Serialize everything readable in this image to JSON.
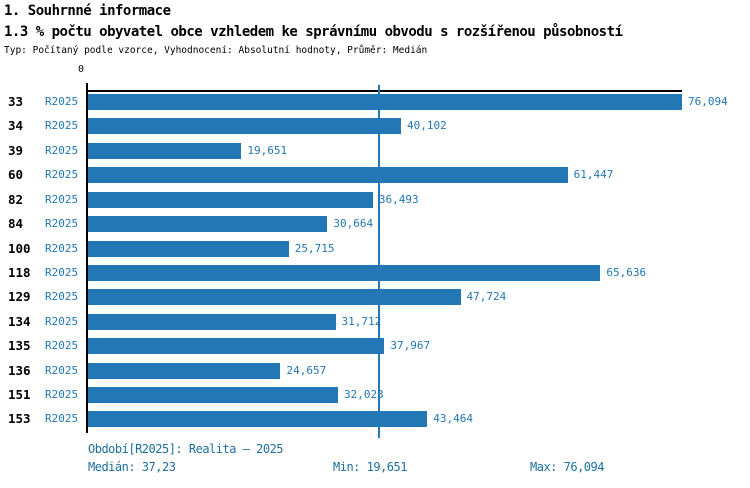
{
  "title": "1. Souhrnné informace",
  "subtitle": "1.3 % počtu obyvatel obce vzhledem ke správnímu obvodu s rozšířenou působností",
  "meta": "Typ: Počítaný podle vzorce, Vyhodnocení: Absolutní hodnoty, Průměr: Medián",
  "chart_data": {
    "type": "bar",
    "orientation": "horizontal",
    "title": "1.3 % počtu obyvatel obce vzhledem ke správnímu obvodu s rozšířenou působností",
    "categories": [
      "33",
      "34",
      "39",
      "60",
      "82",
      "84",
      "100",
      "118",
      "129",
      "134",
      "135",
      "136",
      "151",
      "153"
    ],
    "series_label": "R2025",
    "values": [
      76.094,
      40.102,
      19.651,
      61.447,
      36.493,
      30.664,
      25.715,
      65.636,
      47.724,
      31.712,
      37.967,
      24.657,
      32.023,
      43.464
    ],
    "value_labels": [
      "76,094",
      "40,102",
      "19,651",
      "61,447",
      "36,493",
      "30,664",
      "25,715",
      "65,636",
      "47,724",
      "31,712",
      "37,967",
      "24,657",
      "32,023",
      "43,464"
    ],
    "xlim": [
      0,
      76.094
    ],
    "axis_zero_label": "0",
    "median_line_value": 37.23,
    "grid": false,
    "legend_position": "none",
    "bar_color": "#2277b4",
    "accent_text_color": "#2277b4",
    "footer_text_color": "#1d6f9e"
  },
  "footer": {
    "period": "Období[R2025]: Realita – 2025",
    "median": "Medián: 37,23",
    "min": "Min: 19,651",
    "max": "Max: 76,094"
  }
}
